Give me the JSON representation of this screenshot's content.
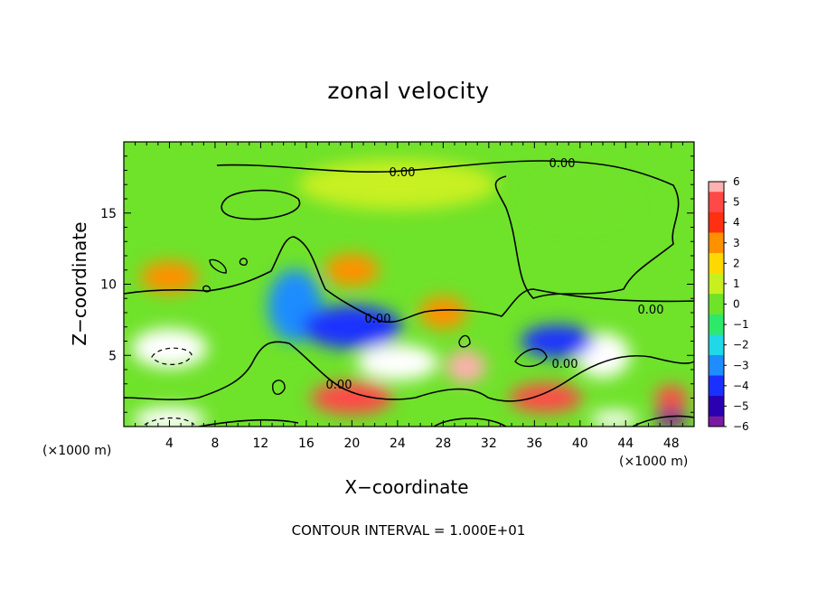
{
  "chart_data": {
    "type": "heatmap",
    "title": "zonal velocity",
    "xlabel": "X−coordinate",
    "ylabel": "Z−coordinate",
    "x_unit_label": "(×1000 m)",
    "x_ticks": [
      "4",
      "8",
      "12",
      "16",
      "20",
      "24",
      "28",
      "32",
      "36",
      "40",
      "44",
      "48"
    ],
    "y_ticks": [
      "5",
      "10",
      "15"
    ],
    "xlim": [
      0,
      50
    ],
    "ylim": [
      0,
      20
    ],
    "colorbar": {
      "ticks": [
        "6",
        "5",
        "4",
        "3",
        "2",
        "1",
        "0",
        "−1",
        "−2",
        "−3",
        "−4",
        "−5",
        "−6"
      ],
      "range": [
        -6,
        6
      ]
    },
    "contour_labels": [
      "0.00",
      "0.00",
      "0.00",
      "0.00",
      "0.00",
      "0.00"
    ],
    "contour_interval_text": "CONTOUR INTERVAL = 1.000E+01",
    "features": [
      {
        "x": 4,
        "z": 5.5,
        "value": -7
      },
      {
        "x": 4,
        "z": 0.5,
        "value": 7
      },
      {
        "x": 24,
        "z": 4.5,
        "value": -7
      },
      {
        "x": 30,
        "z": 4.2,
        "value": 6
      },
      {
        "x": 42,
        "z": 5.0,
        "value": 7
      },
      {
        "x": 43,
        "z": 0.5,
        "value": -7
      },
      {
        "x": 48,
        "z": 0.5,
        "value": -6
      },
      {
        "x": 4,
        "z": 10.5,
        "value": 3
      },
      {
        "x": 20,
        "z": 11,
        "value": 3
      },
      {
        "x": 28,
        "z": 8,
        "value": 3
      },
      {
        "x": 15,
        "z": 8.5,
        "value": -3
      },
      {
        "x": 20,
        "z": 7,
        "value": -4
      },
      {
        "x": 38,
        "z": 6,
        "value": -4
      },
      {
        "x": 20,
        "z": 2,
        "value": 5
      },
      {
        "x": 37,
        "z": 2,
        "value": 5
      },
      {
        "x": 48,
        "z": 2,
        "value": 5
      },
      {
        "x": 24,
        "z": 17,
        "value": 0.5
      },
      {
        "x": 40,
        "z": 16,
        "value": -0.5
      }
    ]
  }
}
